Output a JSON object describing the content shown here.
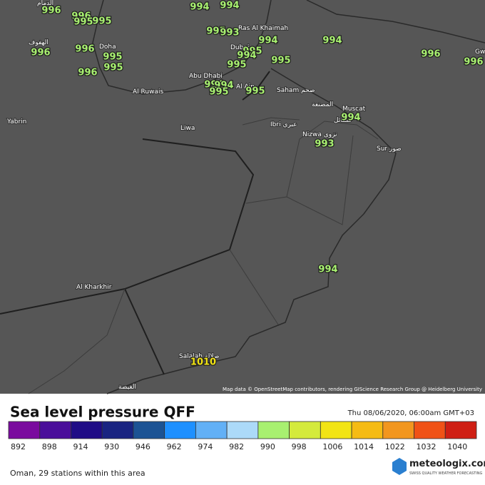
{
  "map": {
    "places": [
      "الدمام",
      "الهفوف",
      "Yabrin",
      "Doha",
      "Al Ruwais",
      "Abu Dhabi",
      "Liwa",
      "Dubai",
      "Ras Al Khaimah",
      "Al Ain",
      "Saham صحم",
      "المصنعة",
      "Muscat",
      "شمائل",
      "Ibri عبري",
      "Nizwa نزوى",
      "Sur صور",
      "Al Kharkhir",
      "Salalah صلالة",
      "الغيضة",
      "Gw"
    ],
    "stations": [
      996,
      996,
      995,
      995,
      996,
      996,
      995,
      995,
      996,
      994,
      994,
      995,
      993,
      994,
      995,
      994,
      995,
      995,
      994,
      994,
      995,
      995,
      994,
      996,
      996,
      994,
      993,
      994,
      1010
    ],
    "attribution": "Map data © OpenStreetMap contributors, rendering GIScience Research Group @ Heidelberg University"
  },
  "legend": {
    "title": "Sea level pressure QFF",
    "timestamp": "Thu 08/06/2020, 06:00am GMT+03",
    "bins": [
      {
        "value": 892,
        "color": "#7a0b9e"
      },
      {
        "value": 898,
        "color": "#4a0e9a"
      },
      {
        "value": 914,
        "color": "#1f0c86"
      },
      {
        "value": 930,
        "color": "#192481"
      },
      {
        "value": 946,
        "color": "#1c5394"
      },
      {
        "value": 962,
        "color": "#1e90ff"
      },
      {
        "value": 974,
        "color": "#62b0f6"
      },
      {
        "value": 982,
        "color": "#acdaf9"
      },
      {
        "value": 990,
        "color": "#a8f070"
      },
      {
        "value": 998,
        "color": "#d4ea3c"
      },
      {
        "value": 1006,
        "color": "#f2e414"
      },
      {
        "value": 1014,
        "color": "#f5bb14"
      },
      {
        "value": 1022,
        "color": "#f2961e"
      },
      {
        "value": 1032,
        "color": "#f05216"
      },
      {
        "value": 1040,
        "color": "#cf1f14"
      }
    ]
  },
  "footer": {
    "note": "Oman, 29 stations within this area"
  },
  "logo": {
    "name": "meteologix.com",
    "tagline": "SWISS QUALITY WEATHER FORECASTING"
  }
}
